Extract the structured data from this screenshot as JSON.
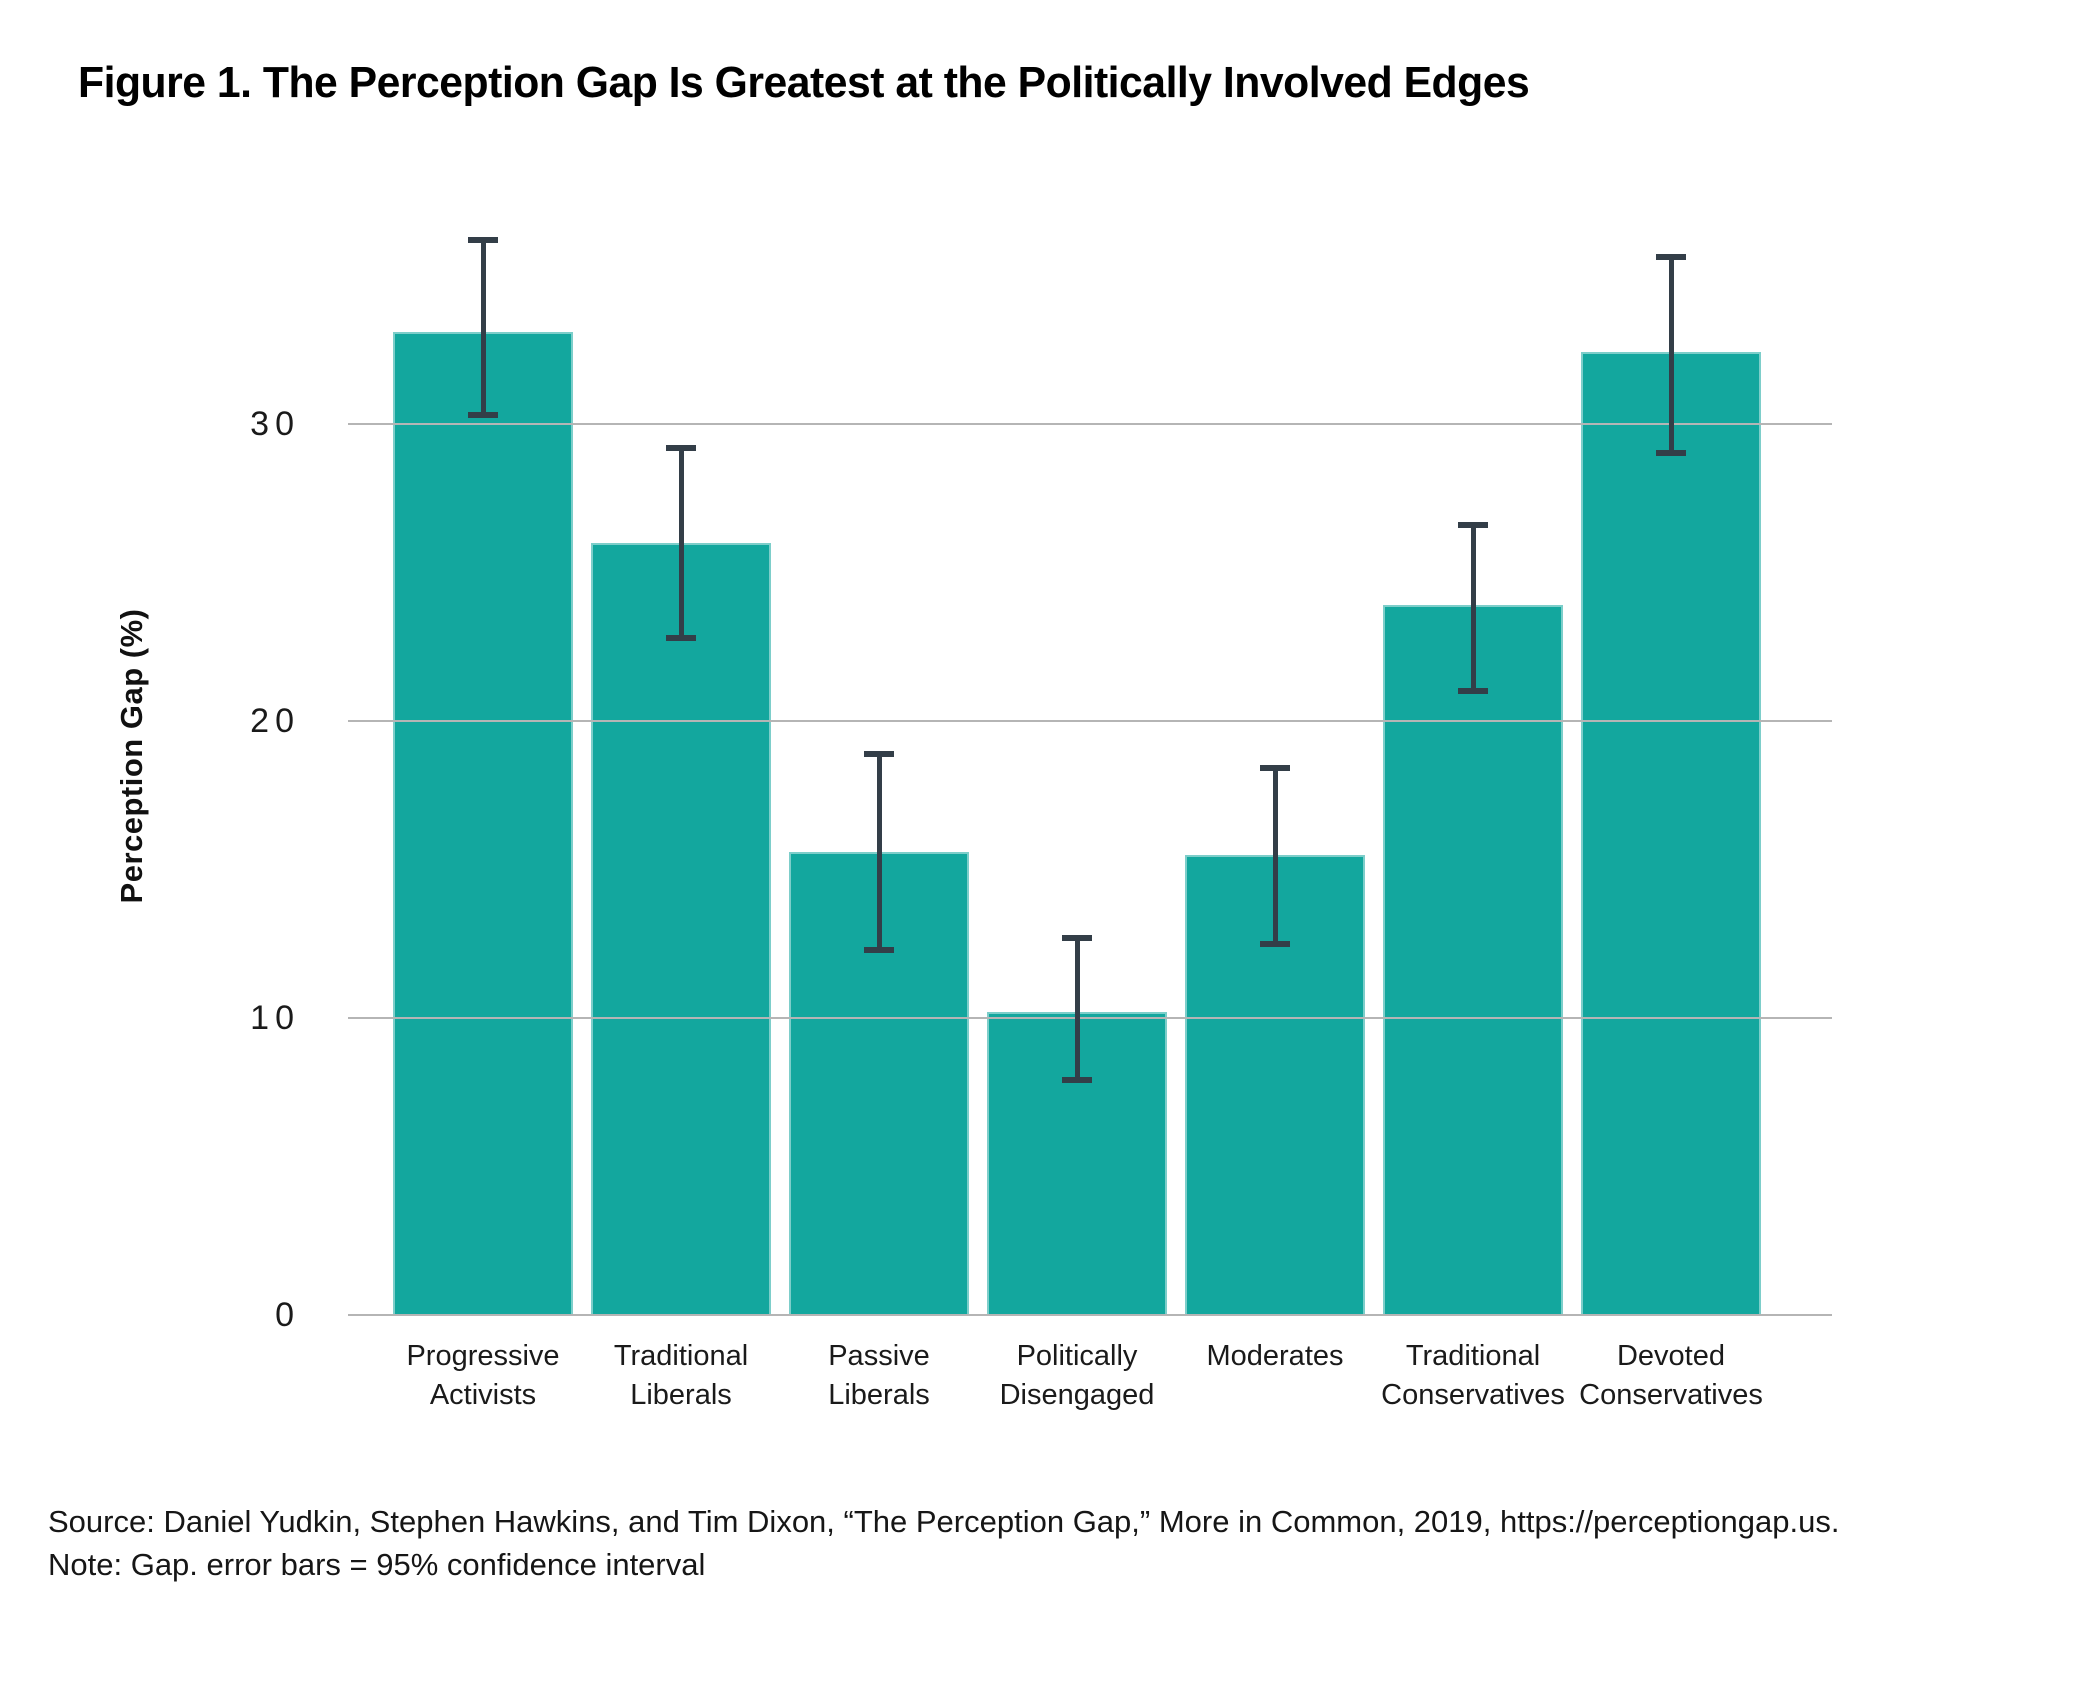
{
  "figure": {
    "title": "Figure 1. The Perception Gap Is Greatest at the Politically Involved Edges",
    "source_line": "Source: Daniel Yudkin, Stephen Hawkins, and Tim Dixon, “The Perception Gap,” More in Common, 2019, https://perceptiongap.us.",
    "note_line": "Note: Gap. error bars = 95% confidence interval"
  },
  "chart_data": {
    "type": "bar",
    "title": "Figure 1. The Perception Gap Is Greatest at the Politically Involved Edges",
    "xlabel": "",
    "ylabel": "Perception Gap (%)",
    "ylim": [
      0,
      37.6
    ],
    "yticks": [
      0,
      10,
      20,
      30
    ],
    "grid": true,
    "legend": "none",
    "bar_color": "#13A79E",
    "error_bar_color": "#333E48",
    "gridline_color": "#b5b5b5",
    "categories": [
      "Progressive Activists",
      "Traditional Liberals",
      "Passive Liberals",
      "Politically Disengaged",
      "Moderates",
      "Traditional Conservatives",
      "Devoted Conservatives"
    ],
    "category_label_lines": [
      "Progressive\nActivists",
      "Traditional\nLiberals",
      "Passive\nLiberals",
      "Politically\nDisengaged",
      "Moderates",
      "Traditional\nConservatives",
      "Devoted\nConservatives"
    ],
    "values": [
      33.1,
      26.0,
      15.6,
      10.2,
      15.5,
      23.9,
      32.4
    ],
    "ci_low": [
      30.3,
      22.8,
      12.3,
      7.9,
      12.5,
      21.0,
      29.0
    ],
    "ci_high": [
      36.2,
      29.2,
      18.9,
      12.7,
      18.4,
      26.6,
      35.6
    ],
    "error_bar_note": "95% confidence interval"
  }
}
